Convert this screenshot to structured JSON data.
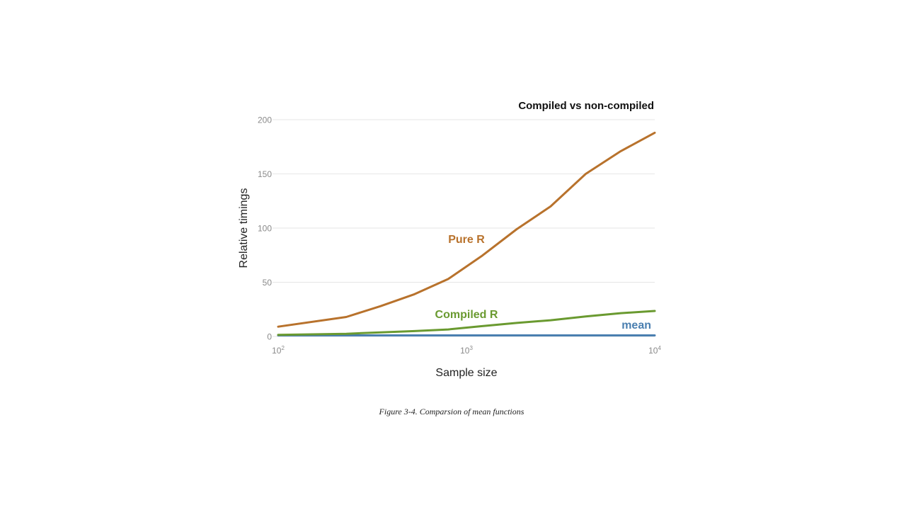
{
  "chart_data": {
    "type": "line",
    "title": "Compiled vs non-compiled",
    "xlabel": "Sample size",
    "ylabel": "Relative timings",
    "x_scale": "log10",
    "xlim": [
      100,
      10000
    ],
    "ylim": [
      0,
      200
    ],
    "x_ticks": [
      {
        "value": 100,
        "base": "10",
        "exp": "2"
      },
      {
        "value": 1000,
        "base": "10",
        "exp": "3"
      },
      {
        "value": 10000,
        "base": "10",
        "exp": "4"
      }
    ],
    "y_ticks": [
      0,
      50,
      100,
      150,
      200
    ],
    "grid": true,
    "legend": "labels placed directly on lines",
    "series": [
      {
        "name": "Pure R",
        "color": "#b8722c",
        "x": [
          100,
          230,
          350,
          530,
          800,
          1200,
          1850,
          2800,
          4300,
          6600,
          10000
        ],
        "values": [
          9,
          18,
          28,
          39,
          53,
          74,
          99,
          120,
          150,
          171,
          188
        ]
      },
      {
        "name": "Compiled R",
        "color": "#6a9a30",
        "x": [
          100,
          230,
          350,
          530,
          800,
          1200,
          1850,
          2800,
          4300,
          6600,
          10000
        ],
        "values": [
          1.5,
          2.5,
          3.8,
          5,
          6.5,
          9.5,
          12.5,
          15,
          18.5,
          21.5,
          23.5
        ]
      },
      {
        "name": "mean",
        "color": "#4a7fb0",
        "x": [
          100,
          10000
        ],
        "values": [
          1,
          1
        ]
      }
    ]
  },
  "caption": "Figure 3-4. Comparsion of mean functions"
}
